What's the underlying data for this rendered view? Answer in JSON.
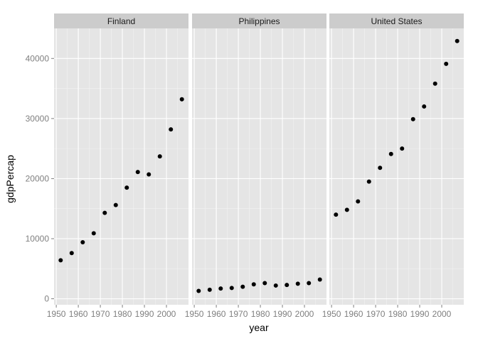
{
  "chart_data": {
    "type": "scatter",
    "xlabel": "year",
    "ylabel": "gdpPercap",
    "xlim": [
      1949,
      2010
    ],
    "ylim": [
      -1000,
      45000
    ],
    "x_ticks": [
      1950,
      1960,
      1970,
      1980,
      1990,
      2000
    ],
    "y_ticks": [
      0,
      10000,
      20000,
      30000,
      40000
    ],
    "grid": true,
    "facets": [
      {
        "name": "Finland",
        "x": [
          1952,
          1957,
          1962,
          1967,
          1972,
          1977,
          1982,
          1987,
          1992,
          1997,
          2002,
          2007
        ],
        "y": [
          6400,
          7600,
          9400,
          10900,
          14300,
          15600,
          18500,
          21100,
          20700,
          23700,
          28200,
          33200
        ]
      },
      {
        "name": "Philippines",
        "x": [
          1952,
          1957,
          1962,
          1967,
          1972,
          1977,
          1982,
          1987,
          1992,
          1997,
          2002,
          2007
        ],
        "y": [
          1300,
          1500,
          1700,
          1800,
          2000,
          2400,
          2600,
          2200,
          2300,
          2500,
          2600,
          3200
        ]
      },
      {
        "name": "United States",
        "x": [
          1952,
          1957,
          1962,
          1967,
          1972,
          1977,
          1982,
          1987,
          1992,
          1997,
          2002,
          2007
        ],
        "y": [
          14000,
          14800,
          16200,
          19500,
          21800,
          24100,
          25000,
          29900,
          32000,
          35800,
          39100,
          42900
        ]
      }
    ]
  },
  "colors": {
    "panel_bg": "#e5e5e5",
    "strip_bg": "#cccccc",
    "grid_major": "#ffffff",
    "grid_minor": "#f2f2f2",
    "point": "#000000"
  }
}
